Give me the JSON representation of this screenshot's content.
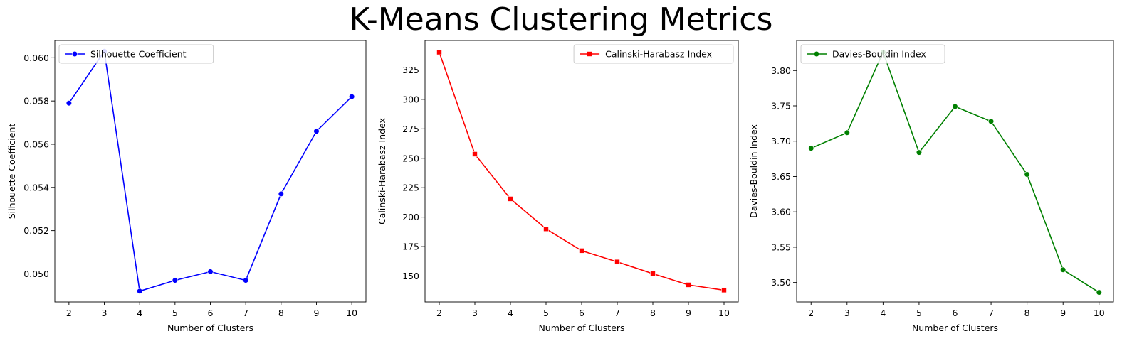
{
  "figure": {
    "title": "K-Means Clustering Metrics"
  },
  "chart_data": [
    {
      "type": "line",
      "x": [
        2,
        3,
        4,
        5,
        6,
        7,
        8,
        9,
        10
      ],
      "xticks": [
        "2",
        "3",
        "4",
        "5",
        "6",
        "7",
        "8",
        "9",
        "10"
      ],
      "xlim": [
        1.6,
        10.4
      ],
      "ylim": [
        0.0487,
        0.0608
      ],
      "yticks": [
        "0.050",
        "0.052",
        "0.054",
        "0.056",
        "0.058",
        "0.060"
      ],
      "ytick_values": [
        0.05,
        0.052,
        0.054,
        0.056,
        0.058,
        0.06
      ],
      "xlabel": "Number of Clusters",
      "ylabel": "Silhouette Coefficient",
      "legend": "upper-left",
      "grid": false,
      "series": [
        {
          "name": "Silhouette Coefficient",
          "color": "#0000ff",
          "marker": "circle",
          "values": [
            0.0579,
            0.0603,
            0.0492,
            0.0497,
            0.0501,
            0.0497,
            0.0537,
            0.0566,
            0.0582
          ]
        }
      ]
    },
    {
      "type": "line",
      "x": [
        2,
        3,
        4,
        5,
        6,
        7,
        8,
        9,
        10
      ],
      "xticks": [
        "2",
        "3",
        "4",
        "5",
        "6",
        "7",
        "8",
        "9",
        "10"
      ],
      "xlim": [
        1.6,
        10.4
      ],
      "ylim": [
        128,
        350
      ],
      "yticks": [
        "150",
        "175",
        "200",
        "225",
        "250",
        "275",
        "300",
        "325"
      ],
      "ytick_values": [
        150,
        175,
        200,
        225,
        250,
        275,
        300,
        325
      ],
      "xlabel": "Number of Clusters",
      "ylabel": "Calinski-Harabasz Index",
      "legend": "upper-right",
      "grid": false,
      "series": [
        {
          "name": "Calinski-Harabasz Index",
          "color": "#ff0000",
          "marker": "square",
          "values": [
            340,
            253.5,
            215.5,
            190,
            171.5,
            162,
            152,
            142.5,
            138
          ]
        }
      ]
    },
    {
      "type": "line",
      "x": [
        2,
        3,
        4,
        5,
        6,
        7,
        8,
        9,
        10
      ],
      "xticks": [
        "2",
        "3",
        "4",
        "5",
        "6",
        "7",
        "8",
        "9",
        "10"
      ],
      "xlim": [
        1.6,
        10.4
      ],
      "ylim": [
        3.4725,
        3.8425
      ],
      "yticks": [
        "3.50",
        "3.55",
        "3.60",
        "3.65",
        "3.70",
        "3.75",
        "3.80"
      ],
      "ytick_values": [
        3.5,
        3.55,
        3.6,
        3.65,
        3.7,
        3.75,
        3.8
      ],
      "xlabel": "Number of Clusters",
      "ylabel": "Davies-Bouldin Index",
      "legend": "upper-left",
      "grid": false,
      "series": [
        {
          "name": "Davies-Bouldin Index",
          "color": "#008000",
          "marker": "circle",
          "values": [
            3.69,
            3.712,
            3.826,
            3.684,
            3.749,
            3.728,
            3.653,
            3.518,
            3.486
          ]
        }
      ]
    }
  ]
}
